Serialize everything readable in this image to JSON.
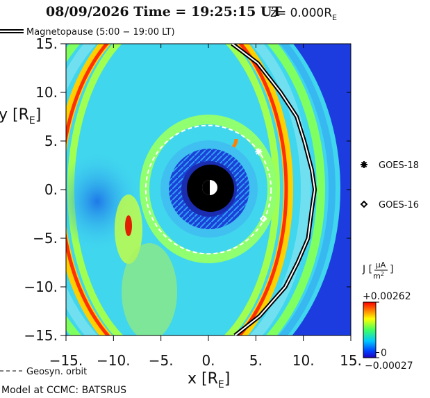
{
  "chart_data": {
    "type": "heatmap",
    "title": "08/09/2026 Time = 19:25:15 UT",
    "z_label": {
      "text": "z= 0.000R",
      "sub": "E"
    },
    "x_label": {
      "text": "x [R",
      "sub": "E",
      "end": "]"
    },
    "y_label": {
      "text": "y [R",
      "sub": "E",
      "end": "]"
    },
    "xlim": [
      -15,
      15
    ],
    "ylim": [
      -15,
      15
    ],
    "xticks": [
      {
        "value": -15,
        "label": "−15."
      },
      {
        "value": -10,
        "label": "−10."
      },
      {
        "value": -5,
        "label": "−5."
      },
      {
        "value": 0,
        "label": "0."
      },
      {
        "value": 5,
        "label": "5."
      },
      {
        "value": 10,
        "label": "10."
      },
      {
        "value": 15,
        "label": "15."
      }
    ],
    "yticks": [
      {
        "value": 15,
        "label": "15."
      },
      {
        "value": 10,
        "label": "10."
      },
      {
        "value": 5,
        "label": "5."
      },
      {
        "value": 0,
        "label": "0."
      },
      {
        "value": -5,
        "label": "−5."
      },
      {
        "value": -10,
        "label": "−10."
      },
      {
        "value": -15,
        "label": "−15."
      }
    ],
    "magnetopause": {
      "name": "Magnetopause (5:00 − 19:00 LT)",
      "x": [
        2.5,
        5.2,
        7.6,
        9.3,
        10.1,
        10.9,
        11.2,
        10.9,
        10.5,
        9.4,
        8.1,
        5.4,
        2.8
      ],
      "y": [
        15,
        13,
        10,
        7.5,
        5,
        2,
        0,
        -2,
        -5,
        -7.5,
        -10,
        -13,
        -15
      ]
    },
    "satellites": [
      {
        "name": "GOES-18",
        "x": 5.3,
        "y": 3.9,
        "marker": "asterisk"
      },
      {
        "name": "GOES-16",
        "x": 5.8,
        "y": -3.0,
        "marker": "diamond"
      }
    ],
    "geosynchronous_orbit": {
      "name": "Geosyn. orbit",
      "radius": 6.6
    },
    "colorbar": {
      "label": {
        "prefix": "J [",
        "numerator": "μA",
        "denominator": "m",
        "denominator_sup": "2",
        "suffix": "]"
      },
      "clim": [
        -0.00027,
        0.00262
      ],
      "ticks": [
        {
          "value": 0.00262,
          "label": "+0.00262"
        },
        0,
        {
          "value": -0.00027,
          "label": "−0.00027"
        }
      ]
    },
    "footer": "Model at CCMC: BATSRUS"
  }
}
